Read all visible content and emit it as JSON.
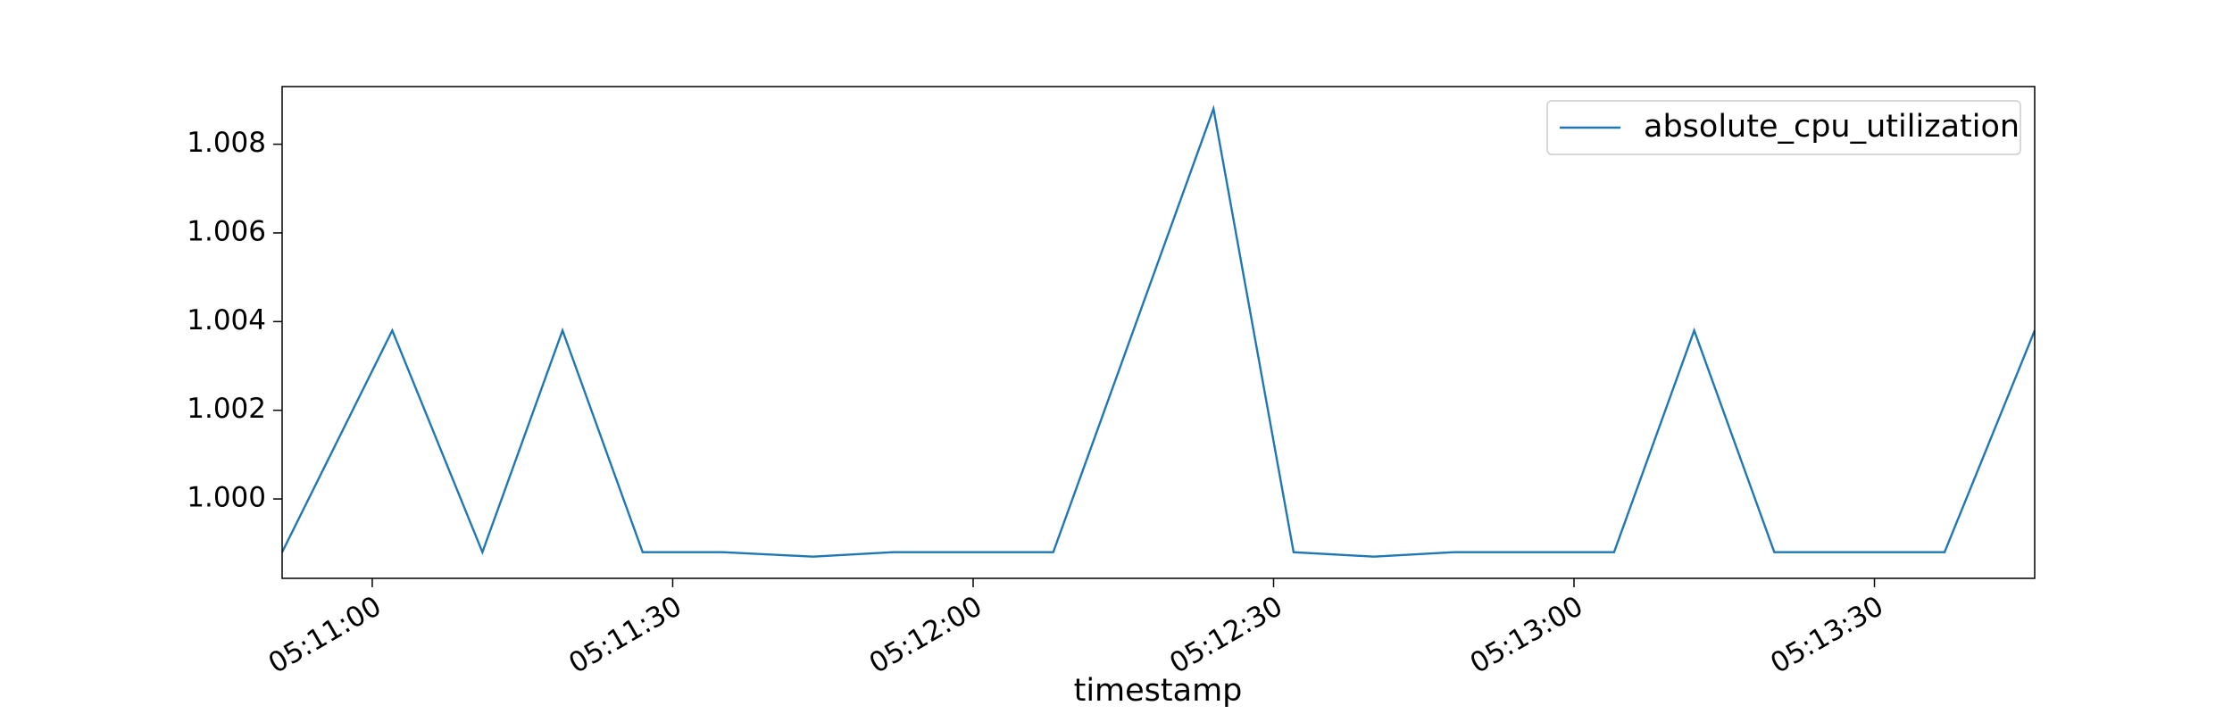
{
  "chart_data": {
    "type": "line",
    "xlabel": "timestamp",
    "x": [
      "05:10:51",
      "05:11:02",
      "05:11:11",
      "05:11:19",
      "05:11:27",
      "05:11:35",
      "05:11:44",
      "05:11:52",
      "05:12:00",
      "05:12:08",
      "05:12:24",
      "05:12:32",
      "05:12:40",
      "05:12:48",
      "05:12:56",
      "05:13:04",
      "05:13:12",
      "05:13:20",
      "05:13:28",
      "05:13:37",
      "05:13:46"
    ],
    "series": [
      {
        "name": "absolute_cpu_utilization",
        "color": "#1f77b4",
        "values": [
          0.9988,
          1.0038,
          0.9988,
          1.0038,
          0.9988,
          0.9988,
          0.9987,
          0.9988,
          0.9988,
          0.9988,
          1.0088,
          0.9988,
          0.9987,
          0.9988,
          0.9988,
          0.9988,
          1.0038,
          0.9988,
          0.9988,
          0.9988,
          1.0038
        ]
      }
    ],
    "xlim": [
      "05:10:51",
      "05:13:46"
    ],
    "xticks": [
      "05:11:00",
      "05:11:30",
      "05:12:00",
      "05:12:30",
      "05:13:00",
      "05:13:30"
    ],
    "ylim": [
      0.99821,
      1.0093
    ],
    "yticks": [
      {
        "value": 1,
        "label": "1.000"
      },
      1.002,
      1.004,
      1.006,
      1.008
    ],
    "legend": "upper right"
  }
}
